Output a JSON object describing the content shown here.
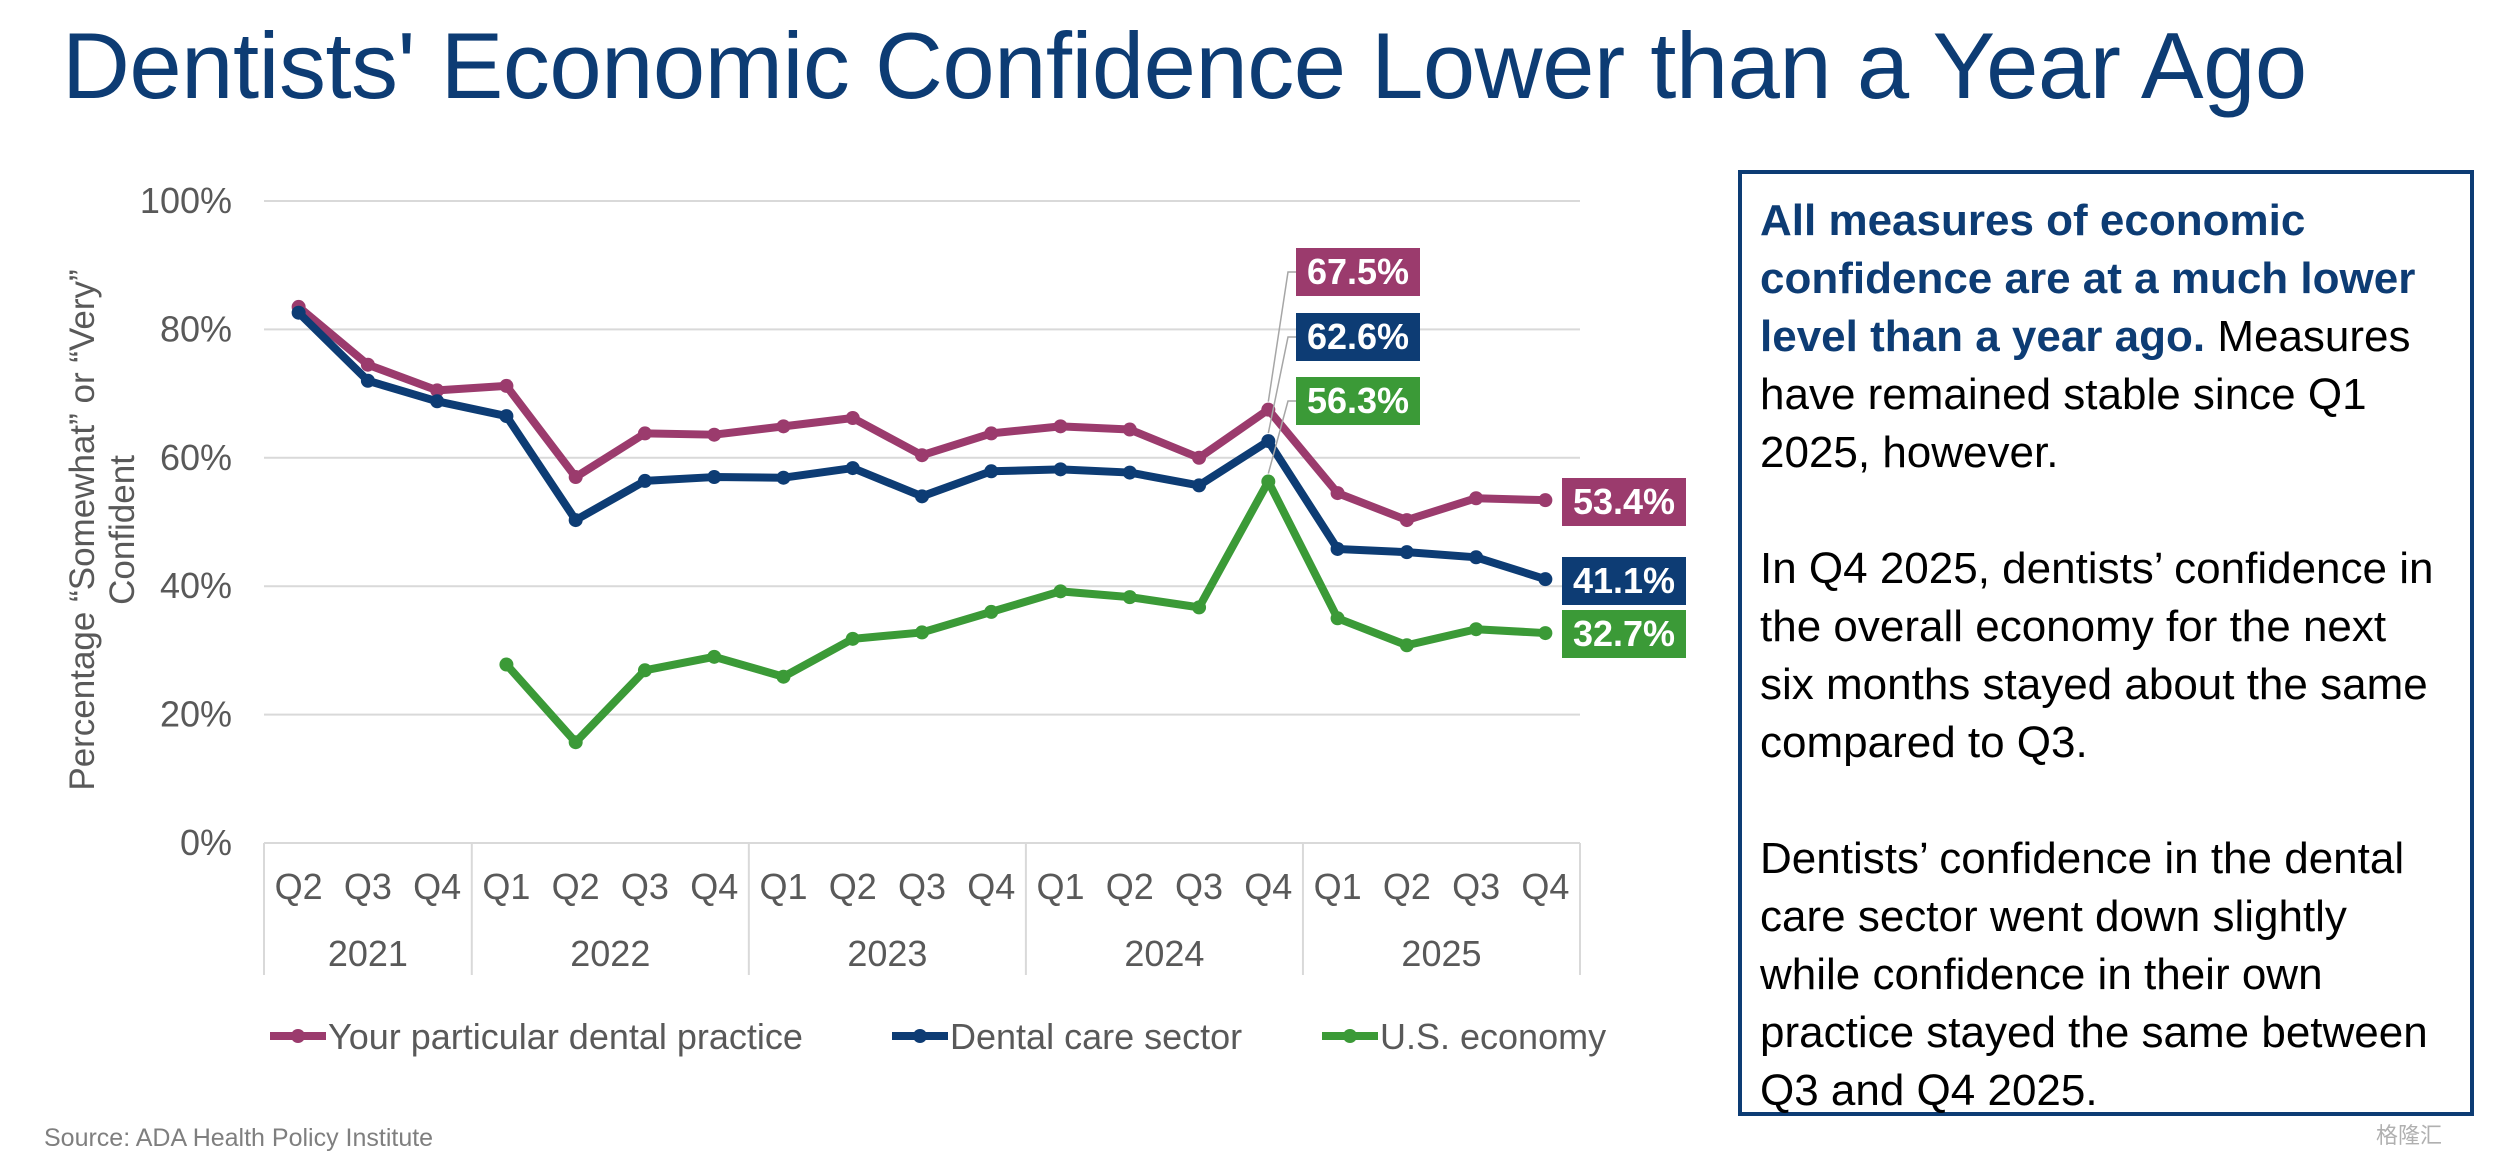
{
  "title": "Dentists' Economic Confidence Lower than a Year Ago",
  "source": "Source: ADA Health Policy Institute",
  "watermark": "格隆汇",
  "sidebar": {
    "highlight": "All measures of economic confidence are at a much lower level than a year ago.",
    "p1_rest": " Measures have remained stable since Q1 2025, however.",
    "p2": "In Q4 2025, dentists’ confidence in the overall economy for the next six months stayed about the same compared to Q3.",
    "p3": "Dentists’ confidence in the dental care sector went down slightly while confidence in their own practice stayed the same between Q3 and Q4 2025."
  },
  "chart_data": {
    "type": "line",
    "ylabel": "Percentage “Somewhat” or “Very” Confident",
    "ylim": [
      0,
      100
    ],
    "yticks": [
      0,
      20,
      40,
      60,
      80,
      100
    ],
    "ytick_labels": [
      "0%",
      "20%",
      "40%",
      "60%",
      "80%",
      "100%"
    ],
    "grid": true,
    "legend_position": "bottom",
    "x_labels": [
      "Q2",
      "Q3",
      "Q4",
      "Q1",
      "Q2",
      "Q3",
      "Q4",
      "Q1",
      "Q2",
      "Q3",
      "Q4",
      "Q1",
      "Q2",
      "Q3",
      "Q4",
      "Q1",
      "Q2",
      "Q3",
      "Q4"
    ],
    "year_groups": [
      {
        "label": "2021",
        "count": 3
      },
      {
        "label": "2022",
        "count": 4
      },
      {
        "label": "2023",
        "count": 4
      },
      {
        "label": "2024",
        "count": 4
      },
      {
        "label": "2025",
        "count": 4
      }
    ],
    "series": [
      {
        "name": "Your particular dental practice",
        "color": "#9b3b6d",
        "values": [
          83.5,
          74.5,
          70.5,
          71.2,
          57.0,
          63.8,
          63.6,
          64.9,
          66.2,
          60.4,
          63.8,
          64.9,
          64.4,
          60.0,
          67.5,
          54.5,
          50.3,
          53.7,
          53.4
        ]
      },
      {
        "name": "Dental care sector",
        "color": "#0d3c74",
        "values": [
          82.6,
          72.0,
          68.8,
          66.5,
          50.3,
          56.4,
          57.0,
          56.9,
          58.4,
          54.0,
          57.9,
          58.2,
          57.7,
          55.7,
          62.6,
          45.8,
          45.3,
          44.5,
          41.1
        ]
      },
      {
        "name": "U.S. economy",
        "color": "#3b9a37",
        "values": [
          null,
          null,
          null,
          27.8,
          15.7,
          26.9,
          29.0,
          25.9,
          31.8,
          32.8,
          36.0,
          39.2,
          38.3,
          36.7,
          56.3,
          35.0,
          30.8,
          33.3,
          32.7
        ]
      }
    ],
    "data_labels": [
      {
        "series": 0,
        "index": 14,
        "text": "67.5%"
      },
      {
        "series": 1,
        "index": 14,
        "text": "62.6%"
      },
      {
        "series": 2,
        "index": 14,
        "text": "56.3%"
      },
      {
        "series": 0,
        "index": 18,
        "text": "53.4%"
      },
      {
        "series": 1,
        "index": 18,
        "text": "41.1%"
      },
      {
        "series": 2,
        "index": 18,
        "text": "32.7%"
      }
    ]
  }
}
